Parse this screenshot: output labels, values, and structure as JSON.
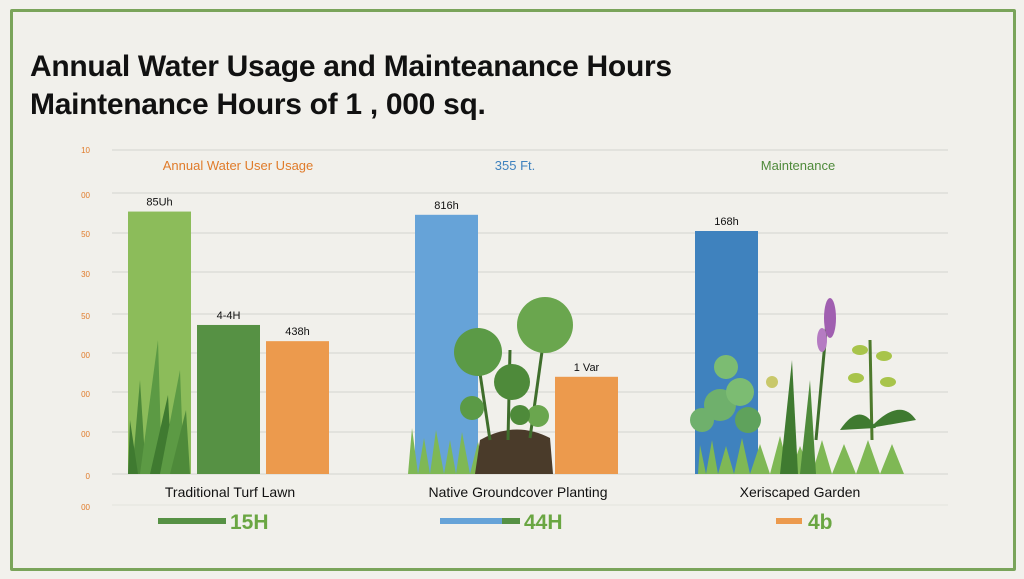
{
  "titles": {
    "line1": "Annual Water Usage and Mainteanance Hours",
    "line2": "Maintenance Hours of 1 , 000 sq."
  },
  "colors": {
    "frame": "#7aa45a",
    "orange": "#ec9a4d",
    "green_dark": "#569144",
    "green_light": "#8cbc5a",
    "blue_light": "#66a3d8",
    "blue_dark": "#3f82be"
  },
  "panel_labels": [
    "Annual Water User Usage",
    "355 Ft.",
    "Maintenance"
  ],
  "axis_ticks": [
    "10",
    "00",
    "50",
    "30",
    "50",
    "00",
    "00",
    "00",
    "0",
    "00"
  ],
  "chart_data": {
    "type": "bar",
    "title": "Annual Water Usage and Mainteanance Hours",
    "ylim": [
      0,
      100
    ],
    "grid": true,
    "groups": [
      {
        "category": "Traditional Turf Lawn",
        "bars": [
          {
            "label": "85Uh",
            "value": 81,
            "color": "#8cbc5a"
          },
          {
            "label": "4-4H",
            "value": 46,
            "color": "#569144"
          },
          {
            "label": "438h",
            "value": 41,
            "color": "#ec9a4d"
          }
        ]
      },
      {
        "category": "Native Groundcover Planting",
        "bars": [
          {
            "label": "816h",
            "value": 80,
            "color": "#66a3d8"
          },
          {
            "label": "1 Var",
            "value": 30,
            "color": "#ec9a4d"
          }
        ]
      },
      {
        "category": "Xeriscaped Garden",
        "bars": [
          {
            "label": "168h",
            "value": 75,
            "color": "#3f82be"
          }
        ]
      }
    ],
    "legend": [
      {
        "text": "15H",
        "text_color": "#6aa642",
        "swatch": [
          "#569144"
        ]
      },
      {
        "text": "44H",
        "text_color": "#6aa642",
        "swatch": [
          "#66a3d8",
          "#569144"
        ]
      },
      {
        "text": "4b",
        "text_color": "#6aa642",
        "swatch": [
          "#ec9a4d"
        ]
      }
    ]
  }
}
